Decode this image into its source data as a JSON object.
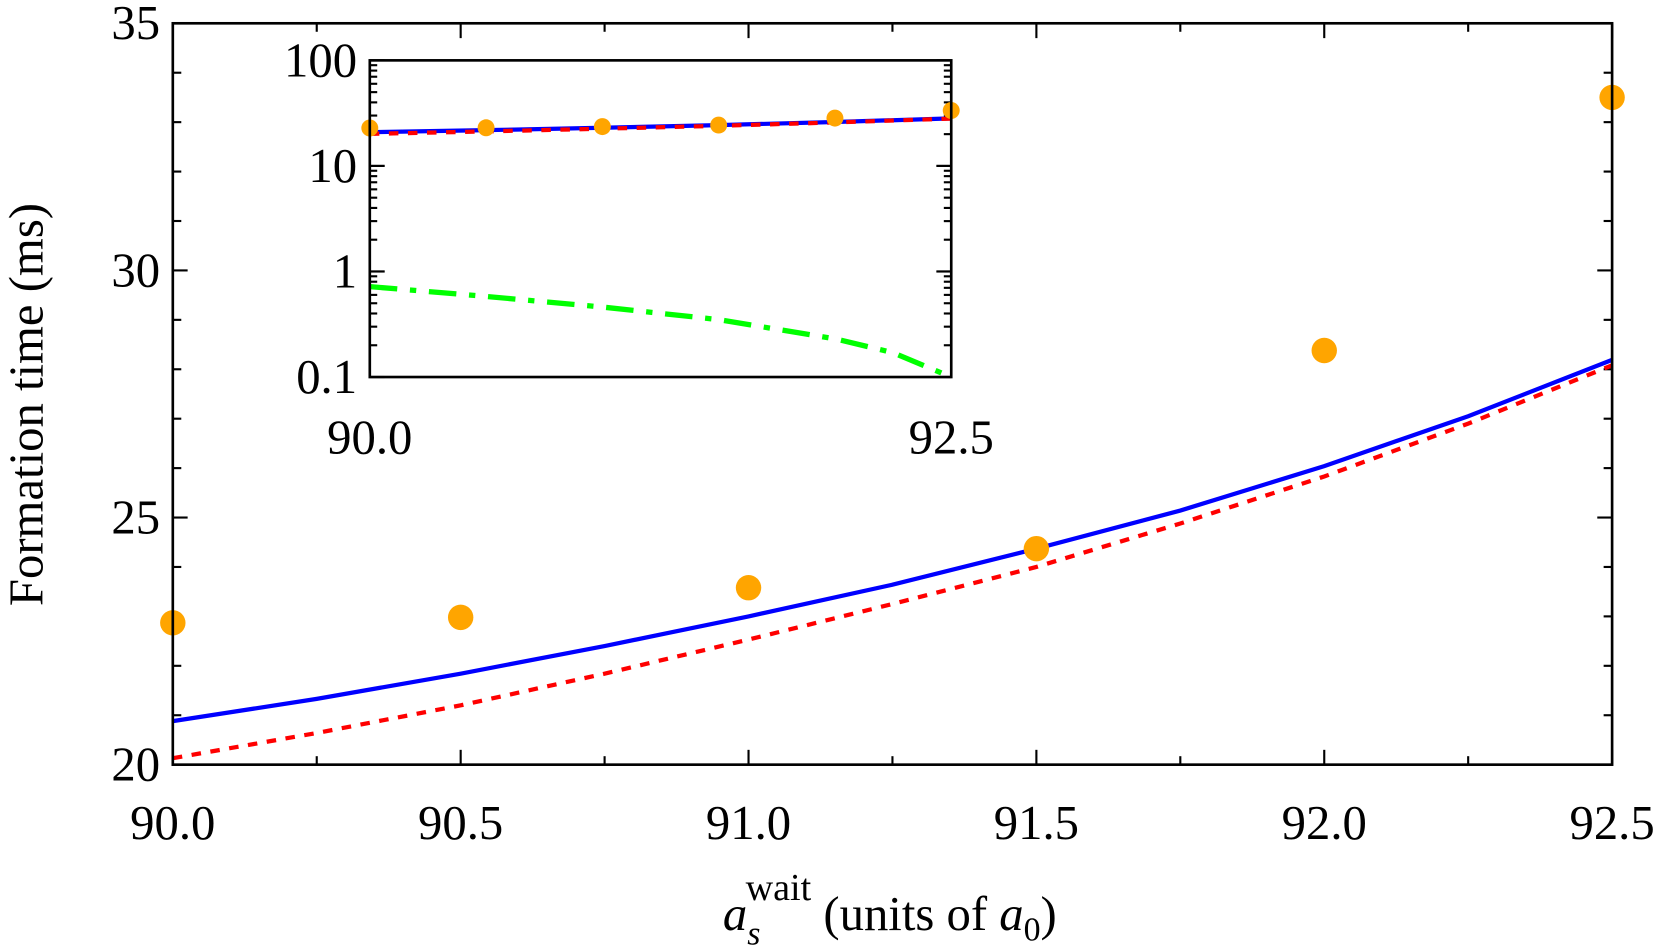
{
  "chart_data": [
    {
      "type": "line+scatter",
      "xlabel": {
        "base": "a",
        "sub": "s",
        "sup": "wait",
        "rest": " (units of ",
        "unit_base": "a",
        "unit_sub": "0",
        "close": ")"
      },
      "ylabel": "Formation time (ms)",
      "xlim": [
        90.0,
        92.5
      ],
      "ylim": [
        20,
        35
      ],
      "xticks": [
        "90.0",
        "90.5",
        "91.0",
        "91.5",
        "92.0",
        "92.5"
      ],
      "yticks": [
        "20",
        "25",
        "30",
        "35"
      ],
      "grid": false,
      "series": [
        {
          "style": "scatter",
          "color": "#ffa500",
          "x": [
            90.0,
            90.5,
            91.0,
            91.5,
            92.0,
            92.5
          ],
          "y": [
            22.87,
            22.98,
            23.58,
            24.37,
            28.38,
            33.5
          ]
        },
        {
          "style": "solid",
          "color": "#0000ff",
          "x": [
            90.0,
            90.25,
            90.5,
            90.75,
            91.0,
            91.25,
            91.5,
            91.75,
            92.0,
            92.25,
            92.5
          ],
          "y": [
            20.88,
            21.33,
            21.84,
            22.4,
            23.0,
            23.64,
            24.37,
            25.14,
            26.04,
            27.05,
            28.19
          ]
        },
        {
          "style": "dotted",
          "color": "#ff0000",
          "x": [
            90.0,
            90.25,
            90.5,
            90.75,
            91.0,
            91.25,
            91.5,
            91.75,
            92.0,
            92.25,
            92.5
          ],
          "y": [
            20.13,
            20.64,
            21.2,
            21.84,
            22.53,
            23.25,
            24.0,
            24.88,
            25.83,
            26.9,
            28.08
          ]
        }
      ]
    },
    {
      "type": "line+scatter",
      "inset": true,
      "xlim": [
        90.0,
        92.5
      ],
      "ylim": [
        0.1,
        100
      ],
      "yscale": "log",
      "xticks": [
        "90.0",
        "92.5"
      ],
      "yticks": [
        "0.1",
        "1",
        "10",
        "100"
      ],
      "series": [
        {
          "style": "scatter",
          "color": "#ffa500",
          "x": [
            90.0,
            90.5,
            91.0,
            91.5,
            92.0,
            92.5
          ],
          "y": [
            22.87,
            22.98,
            23.58,
            24.37,
            28.38,
            33.5
          ]
        },
        {
          "style": "solid",
          "color": "#0000ff",
          "x": [
            90.0,
            90.5,
            91.0,
            91.5,
            92.0,
            92.5
          ],
          "y": [
            20.88,
            21.84,
            23.0,
            24.37,
            26.04,
            28.19
          ]
        },
        {
          "style": "dotted",
          "color": "#ff0000",
          "x": [
            90.0,
            90.5,
            91.0,
            91.5,
            92.0,
            92.5
          ],
          "y": [
            20.13,
            21.2,
            22.53,
            24.0,
            25.83,
            28.08
          ]
        },
        {
          "style": "dashdot",
          "color": "#00ff00",
          "x": [
            90.0,
            90.5,
            91.0,
            91.5,
            92.0,
            92.25,
            92.5
          ],
          "y": [
            0.72,
            0.58,
            0.46,
            0.35,
            0.23,
            0.17,
            0.1
          ]
        }
      ]
    }
  ]
}
